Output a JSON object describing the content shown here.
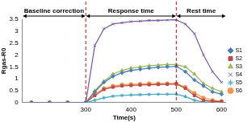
{
  "chart_data": {
    "type": "line",
    "x_label": "Time(s)",
    "y_label": "Rgas-R0",
    "x": [
      180,
      220,
      260,
      300,
      320,
      340,
      360,
      380,
      400,
      420,
      440,
      460,
      480,
      500,
      520,
      540,
      560,
      580,
      600
    ],
    "series": [
      {
        "name": "S1",
        "color": "#4a7ebb",
        "marker": "diamond",
        "values": [
          0,
          0,
          0,
          0,
          0.45,
          0.85,
          1.1,
          1.25,
          1.35,
          1.4,
          1.45,
          1.48,
          1.5,
          1.52,
          1.3,
          0.95,
          0.7,
          0.45,
          0.35
        ]
      },
      {
        "name": "S2",
        "color": "#be4b48",
        "marker": "square",
        "values": [
          0,
          0,
          0,
          0,
          0.3,
          0.55,
          0.65,
          0.7,
          0.72,
          0.74,
          0.75,
          0.76,
          0.77,
          0.78,
          0.6,
          0.3,
          0.1,
          0.05,
          0.05
        ]
      },
      {
        "name": "S3",
        "color": "#98b954",
        "marker": "triangle",
        "values": [
          0,
          0,
          0,
          0,
          0.5,
          0.9,
          1.2,
          1.35,
          1.45,
          1.5,
          1.55,
          1.57,
          1.6,
          1.6,
          1.5,
          1.2,
          0.8,
          0.6,
          0.45
        ]
      },
      {
        "name": "S4",
        "color": "#7d60a0",
        "marker": "x",
        "values": [
          0,
          0,
          0,
          0,
          2.4,
          3.1,
          3.3,
          3.35,
          3.4,
          3.42,
          3.45,
          3.45,
          3.47,
          3.48,
          3.3,
          2.9,
          2.0,
          1.3,
          0.85
        ]
      },
      {
        "name": "S5",
        "color": "#46aac5",
        "marker": "star",
        "values": [
          0,
          0,
          0,
          0,
          0.1,
          0.2,
          0.27,
          0.3,
          0.32,
          0.33,
          0.34,
          0.35,
          0.35,
          0.35,
          0.25,
          0.1,
          0.03,
          0.02,
          0.02
        ]
      },
      {
        "name": "S6",
        "color": "#f79646",
        "marker": "circle",
        "values": [
          0,
          0,
          0,
          0,
          0.35,
          0.6,
          0.7,
          0.75,
          0.77,
          0.78,
          0.8,
          0.8,
          0.8,
          0.8,
          0.65,
          0.4,
          0.2,
          0.1,
          0.05
        ]
      }
    ],
    "xlim": [
      160,
      610
    ],
    "xticks": [
      300,
      400,
      500,
      600
    ],
    "ylim": [
      0,
      3.5
    ],
    "yticks": [
      0,
      0.5,
      1,
      1.5,
      2,
      2.5,
      3,
      3.5
    ],
    "grid": false,
    "legend": "right",
    "annotations": [
      {
        "text": "Baseline correction",
        "x_from": 160,
        "x_to": 300
      },
      {
        "text": "Response time",
        "x_from": 300,
        "x_to": 500
      },
      {
        "text": "Rest time",
        "x_from": 500,
        "x_to": 610
      }
    ]
  }
}
